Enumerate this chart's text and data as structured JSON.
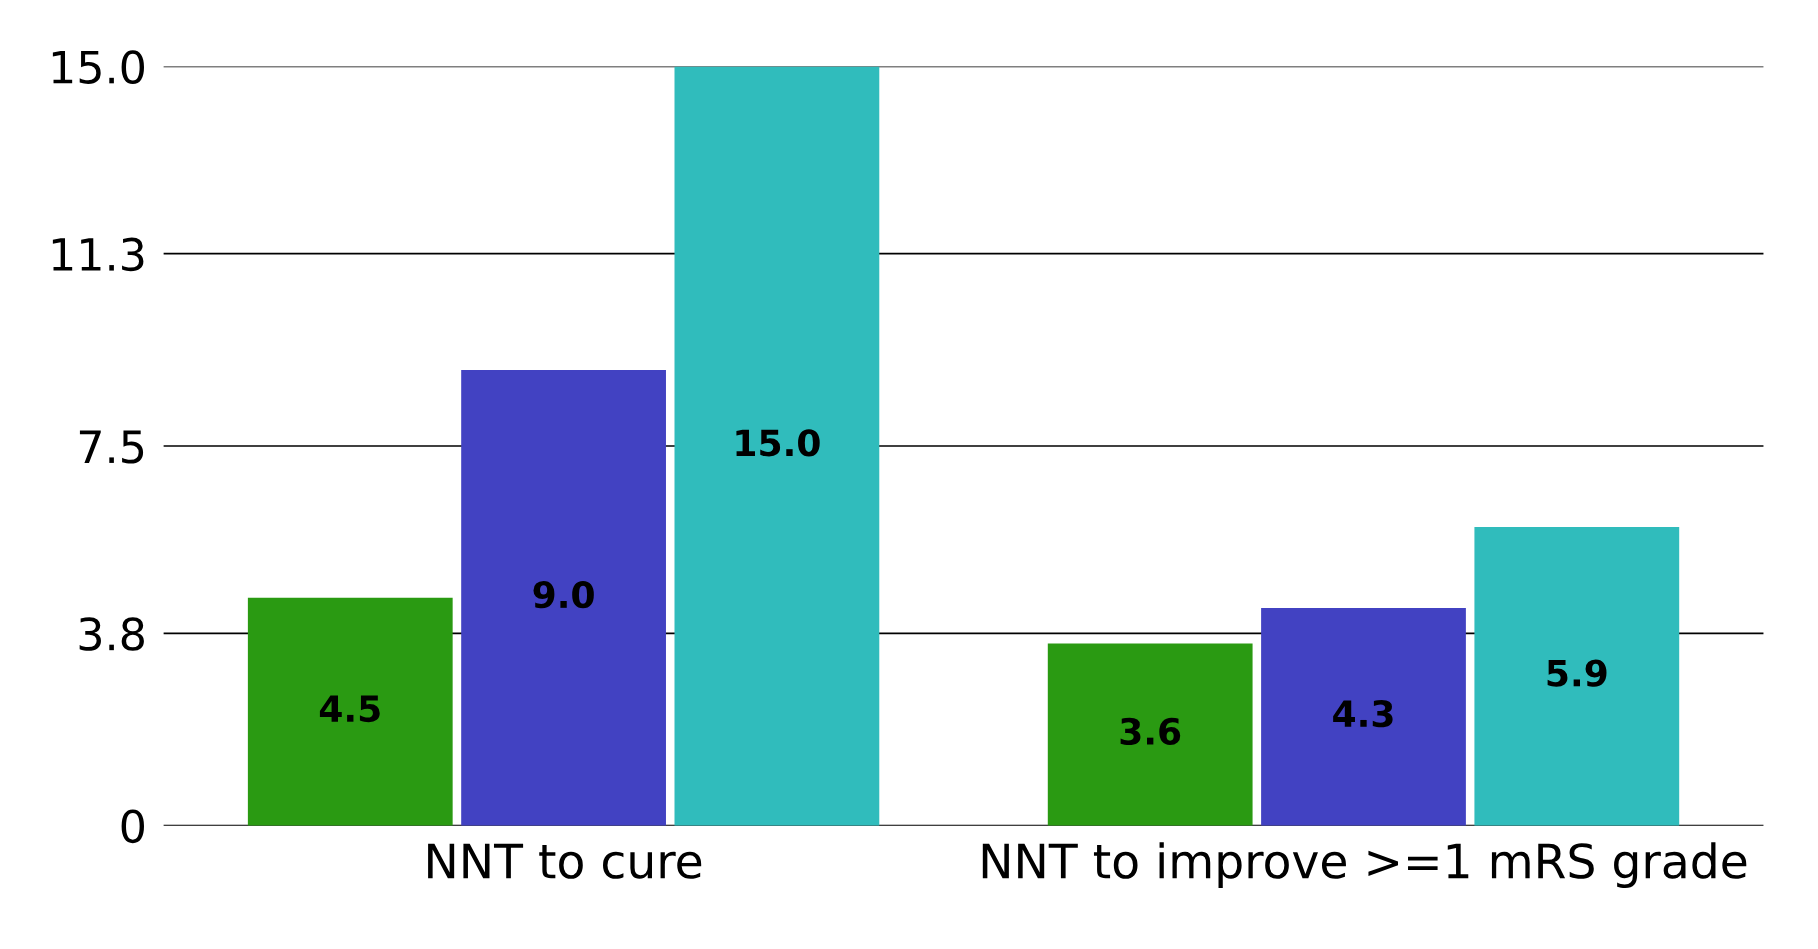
{
  "chart_data": {
    "type": "bar",
    "categories": [
      "NNT to cure",
      "NNT to improve >=1 mRS grade"
    ],
    "series": [
      {
        "color": "#2a9a12",
        "values": [
          4.5,
          3.6
        ],
        "value_labels": [
          "4.5",
          "3.6"
        ]
      },
      {
        "color": "#4242c2",
        "values": [
          9.0,
          4.3
        ],
        "value_labels": [
          "9.0",
          "4.3"
        ]
      },
      {
        "color": "#30bcbc",
        "values": [
          15.0,
          5.9
        ],
        "value_labels": [
          "15.0",
          "5.9"
        ]
      }
    ],
    "ylim": [
      0,
      15
    ],
    "yticks": [
      0,
      3.8,
      7.5,
      11.3,
      {
        "value": 15,
        "label": "15.0"
      }
    ],
    "grid": "y"
  }
}
